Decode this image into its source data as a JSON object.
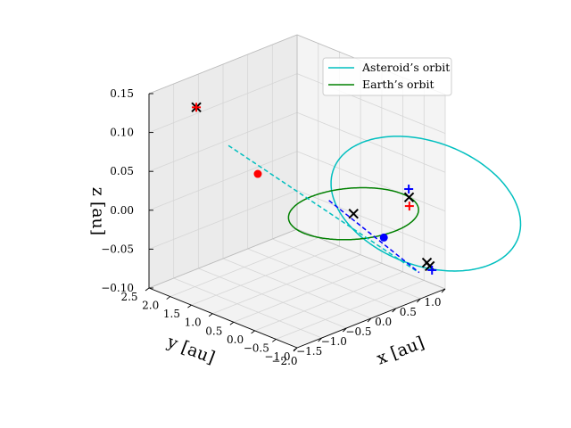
{
  "chart_data": {
    "type": "line",
    "projection": "3d",
    "title": "",
    "xlabel": "x [au]",
    "ylabel": "y [au]",
    "zlabel": "z [au]",
    "xlim": [
      -2.0,
      1.0
    ],
    "ylim": [
      -1.0,
      2.5
    ],
    "zlim": [
      -0.1,
      0.15
    ],
    "xticks": [
      "−2.0",
      "−1.5",
      "−1.0",
      "−0.5",
      "0.0",
      "0.5",
      "1.0"
    ],
    "yticks": [
      "−1.0",
      "−0.5",
      "0.0",
      "0.5",
      "1.0",
      "1.5",
      "2.0",
      "2.5"
    ],
    "zticks": [
      "−0.10",
      "−0.05",
      "0.00",
      "0.05",
      "0.10",
      "0.15"
    ],
    "grid": true,
    "legend_position": "top-right",
    "series": [
      {
        "name": "Asteroid’s orbit",
        "color": "#00bfbf",
        "style": "solid",
        "ellipse": {
          "a": 1.85,
          "e": 0.86,
          "inc_deg": 4.2,
          "Omega_deg": 20,
          "omega_deg": 165
        }
      },
      {
        "name": "Earth’s orbit",
        "color": "#008000",
        "style": "solid",
        "ellipse": {
          "a": 1.0,
          "e": 0.0,
          "inc_deg": 0,
          "Omega_deg": 0,
          "omega_deg": 0
        }
      }
    ],
    "dashed_segments": [
      {
        "color": "#00bfbf",
        "from": [
          -1.47,
          1.24,
          0.0975
        ],
        "to": [
          0.56,
          -0.86,
          -0.07
        ]
      },
      {
        "color": "#0000ff",
        "from": [
          -0.31,
          0.22,
          0.02
        ],
        "to": [
          0.56,
          -0.9,
          -0.07
        ]
      }
    ],
    "points": [
      {
        "marker": "x",
        "color": "#000000",
        "x": 0.0,
        "y": 0.0,
        "z": 0.0
      },
      {
        "marker": "x",
        "color": "#000000",
        "x": -1.47,
        "y": 2.0,
        "z": 0.13
      },
      {
        "marker": "+",
        "color": "#ff0000",
        "x": -1.47,
        "y": 2.0,
        "z": 0.13
      },
      {
        "marker": "o",
        "color": "#ff0000",
        "x": -1.15,
        "y": 0.92,
        "z": 0.06
      },
      {
        "marker": "o",
        "color": "#0000ff",
        "x": 0.1,
        "y": -0.6,
        "z": -0.02
      },
      {
        "marker": "x",
        "color": "#000000",
        "x": 0.98,
        "y": -0.17,
        "z": 0.0
      },
      {
        "marker": "+",
        "color": "#0000ff",
        "x": 0.99,
        "y": -0.15,
        "z": 0.01
      },
      {
        "marker": "+",
        "color": "#ff0000",
        "x": 0.96,
        "y": -0.2,
        "z": -0.01
      },
      {
        "marker": "x",
        "color": "#000000",
        "x": 0.69,
        "y": -0.93,
        "z": -0.06
      },
      {
        "marker": "x",
        "color": "#000000",
        "x": 0.73,
        "y": -0.95,
        "z": -0.065
      },
      {
        "marker": "+",
        "color": "#0000ff",
        "x": 0.75,
        "y": -0.98,
        "z": -0.07
      }
    ]
  }
}
